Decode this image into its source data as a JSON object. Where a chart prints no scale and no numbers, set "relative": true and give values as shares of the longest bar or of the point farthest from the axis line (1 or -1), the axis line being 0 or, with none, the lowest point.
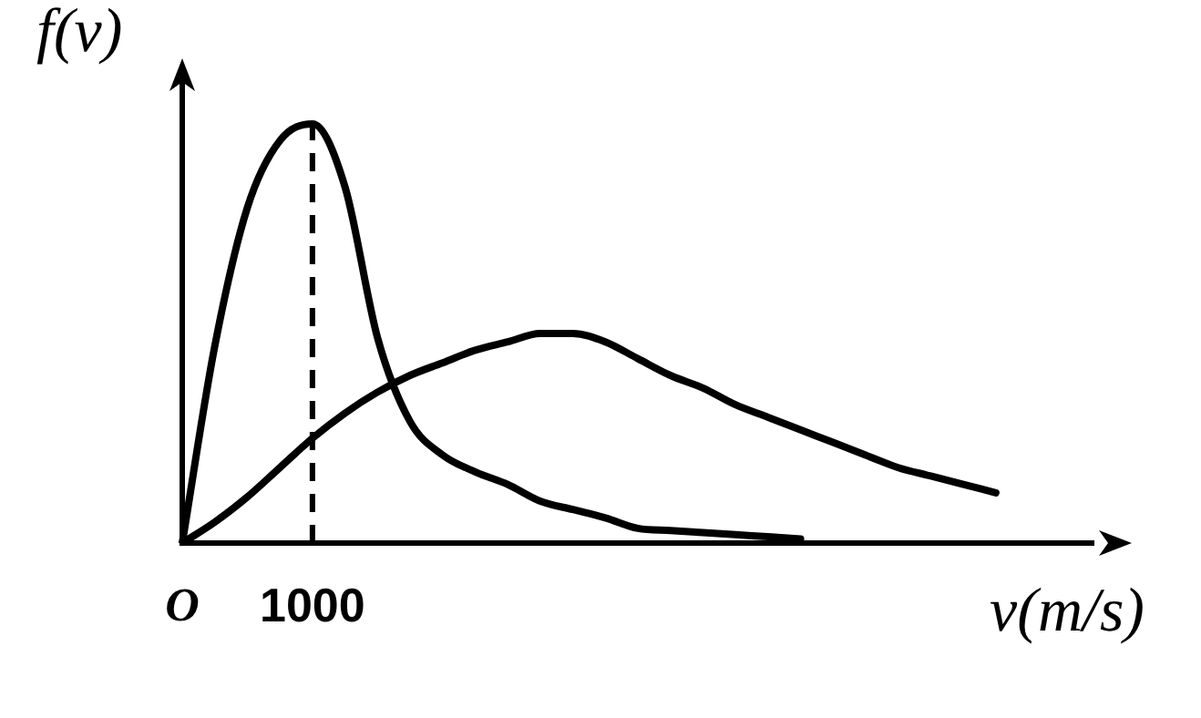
{
  "chart_data": {
    "type": "line",
    "relative": true,
    "xlabel": "v(m/s)",
    "ylabel": "f(v)",
    "categories": [
      "O",
      null,
      null,
      null,
      "1000",
      null,
      null,
      null,
      null,
      null,
      null,
      null,
      null,
      null,
      null,
      null,
      null,
      null,
      null,
      null,
      null,
      null,
      null,
      null,
      null,
      null,
      null,
      null,
      null
    ],
    "grid": false,
    "legend": false,
    "marker": "none",
    "line_style": "solid",
    "series": [
      {
        "color": "#000000",
        "values": [
          0,
          0.47,
          0.8,
          0.96,
          1,
          0.85,
          0.49,
          0.29,
          0.21,
          0.17,
          0.14,
          0.1,
          0.08,
          0.06,
          0.035,
          0.03,
          0.025,
          0.02,
          0.015,
          0.01,
          null,
          null,
          null,
          null,
          null,
          null,
          null,
          null,
          null
        ]
      },
      {
        "color": "#000000",
        "values": [
          0,
          0.05,
          0.11,
          0.18,
          0.25,
          0.31,
          0.36,
          0.4,
          0.43,
          0.46,
          0.48,
          0.5,
          0.5,
          0.48,
          0.44,
          0.4,
          0.37,
          0.33,
          0.3,
          0.27,
          0.24,
          0.21,
          0.18,
          0.16,
          0.14,
          0.12,
          null,
          null,
          null
        ]
      }
    ],
    "ref_lines": [
      {
        "axis": "x",
        "value": "1000",
        "line_style": "dashed",
        "color": "#000000"
      }
    ]
  }
}
